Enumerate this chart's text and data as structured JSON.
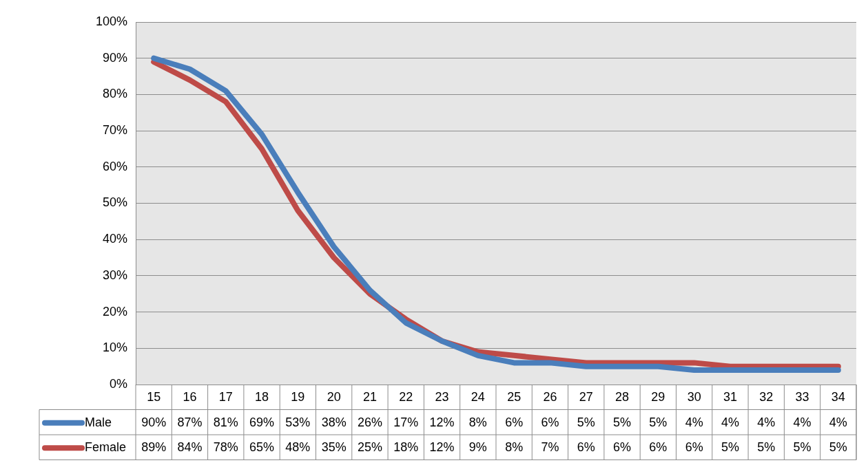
{
  "chart_data": {
    "type": "line",
    "categories": [
      "15",
      "16",
      "17",
      "18",
      "19",
      "20",
      "21",
      "22",
      "23",
      "24",
      "25",
      "26",
      "27",
      "28",
      "29",
      "30",
      "31",
      "32",
      "33",
      "34"
    ],
    "series": [
      {
        "name": "Male",
        "color": "#4a7ebb",
        "values": [
          90,
          87,
          81,
          69,
          53,
          38,
          26,
          17,
          12,
          8,
          6,
          6,
          5,
          5,
          5,
          4,
          4,
          4,
          4,
          4
        ],
        "value_labels": [
          "90%",
          "87%",
          "81%",
          "69%",
          "53%",
          "38%",
          "26%",
          "17%",
          "12%",
          "8%",
          "6%",
          "6%",
          "5%",
          "5%",
          "5%",
          "4%",
          "4%",
          "4%",
          "4%",
          "4%"
        ]
      },
      {
        "name": "Female",
        "color": "#be4b48",
        "values": [
          89,
          84,
          78,
          65,
          48,
          35,
          25,
          18,
          12,
          9,
          8,
          7,
          6,
          6,
          6,
          6,
          5,
          5,
          5,
          5
        ],
        "value_labels": [
          "89%",
          "84%",
          "78%",
          "65%",
          "48%",
          "35%",
          "25%",
          "18%",
          "12%",
          "9%",
          "8%",
          "7%",
          "6%",
          "6%",
          "6%",
          "6%",
          "5%",
          "5%",
          "5%",
          "5%"
        ]
      }
    ],
    "ylim": [
      0,
      100
    ],
    "yticks": [
      {
        "value": 0,
        "label": "0%"
      },
      {
        "value": 10,
        "label": "10%"
      },
      {
        "value": 20,
        "label": "20%"
      },
      {
        "value": 30,
        "label": "30%"
      },
      {
        "value": 40,
        "label": "40%"
      },
      {
        "value": 50,
        "label": "50%"
      },
      {
        "value": 60,
        "label": "60%"
      },
      {
        "value": 70,
        "label": "70%"
      },
      {
        "value": 80,
        "label": "80%"
      },
      {
        "value": 90,
        "label": "90%"
      },
      {
        "value": 100,
        "label": "100%"
      }
    ],
    "grid": "y",
    "legend": "bottom",
    "marker": "none",
    "line_style": "solid"
  }
}
